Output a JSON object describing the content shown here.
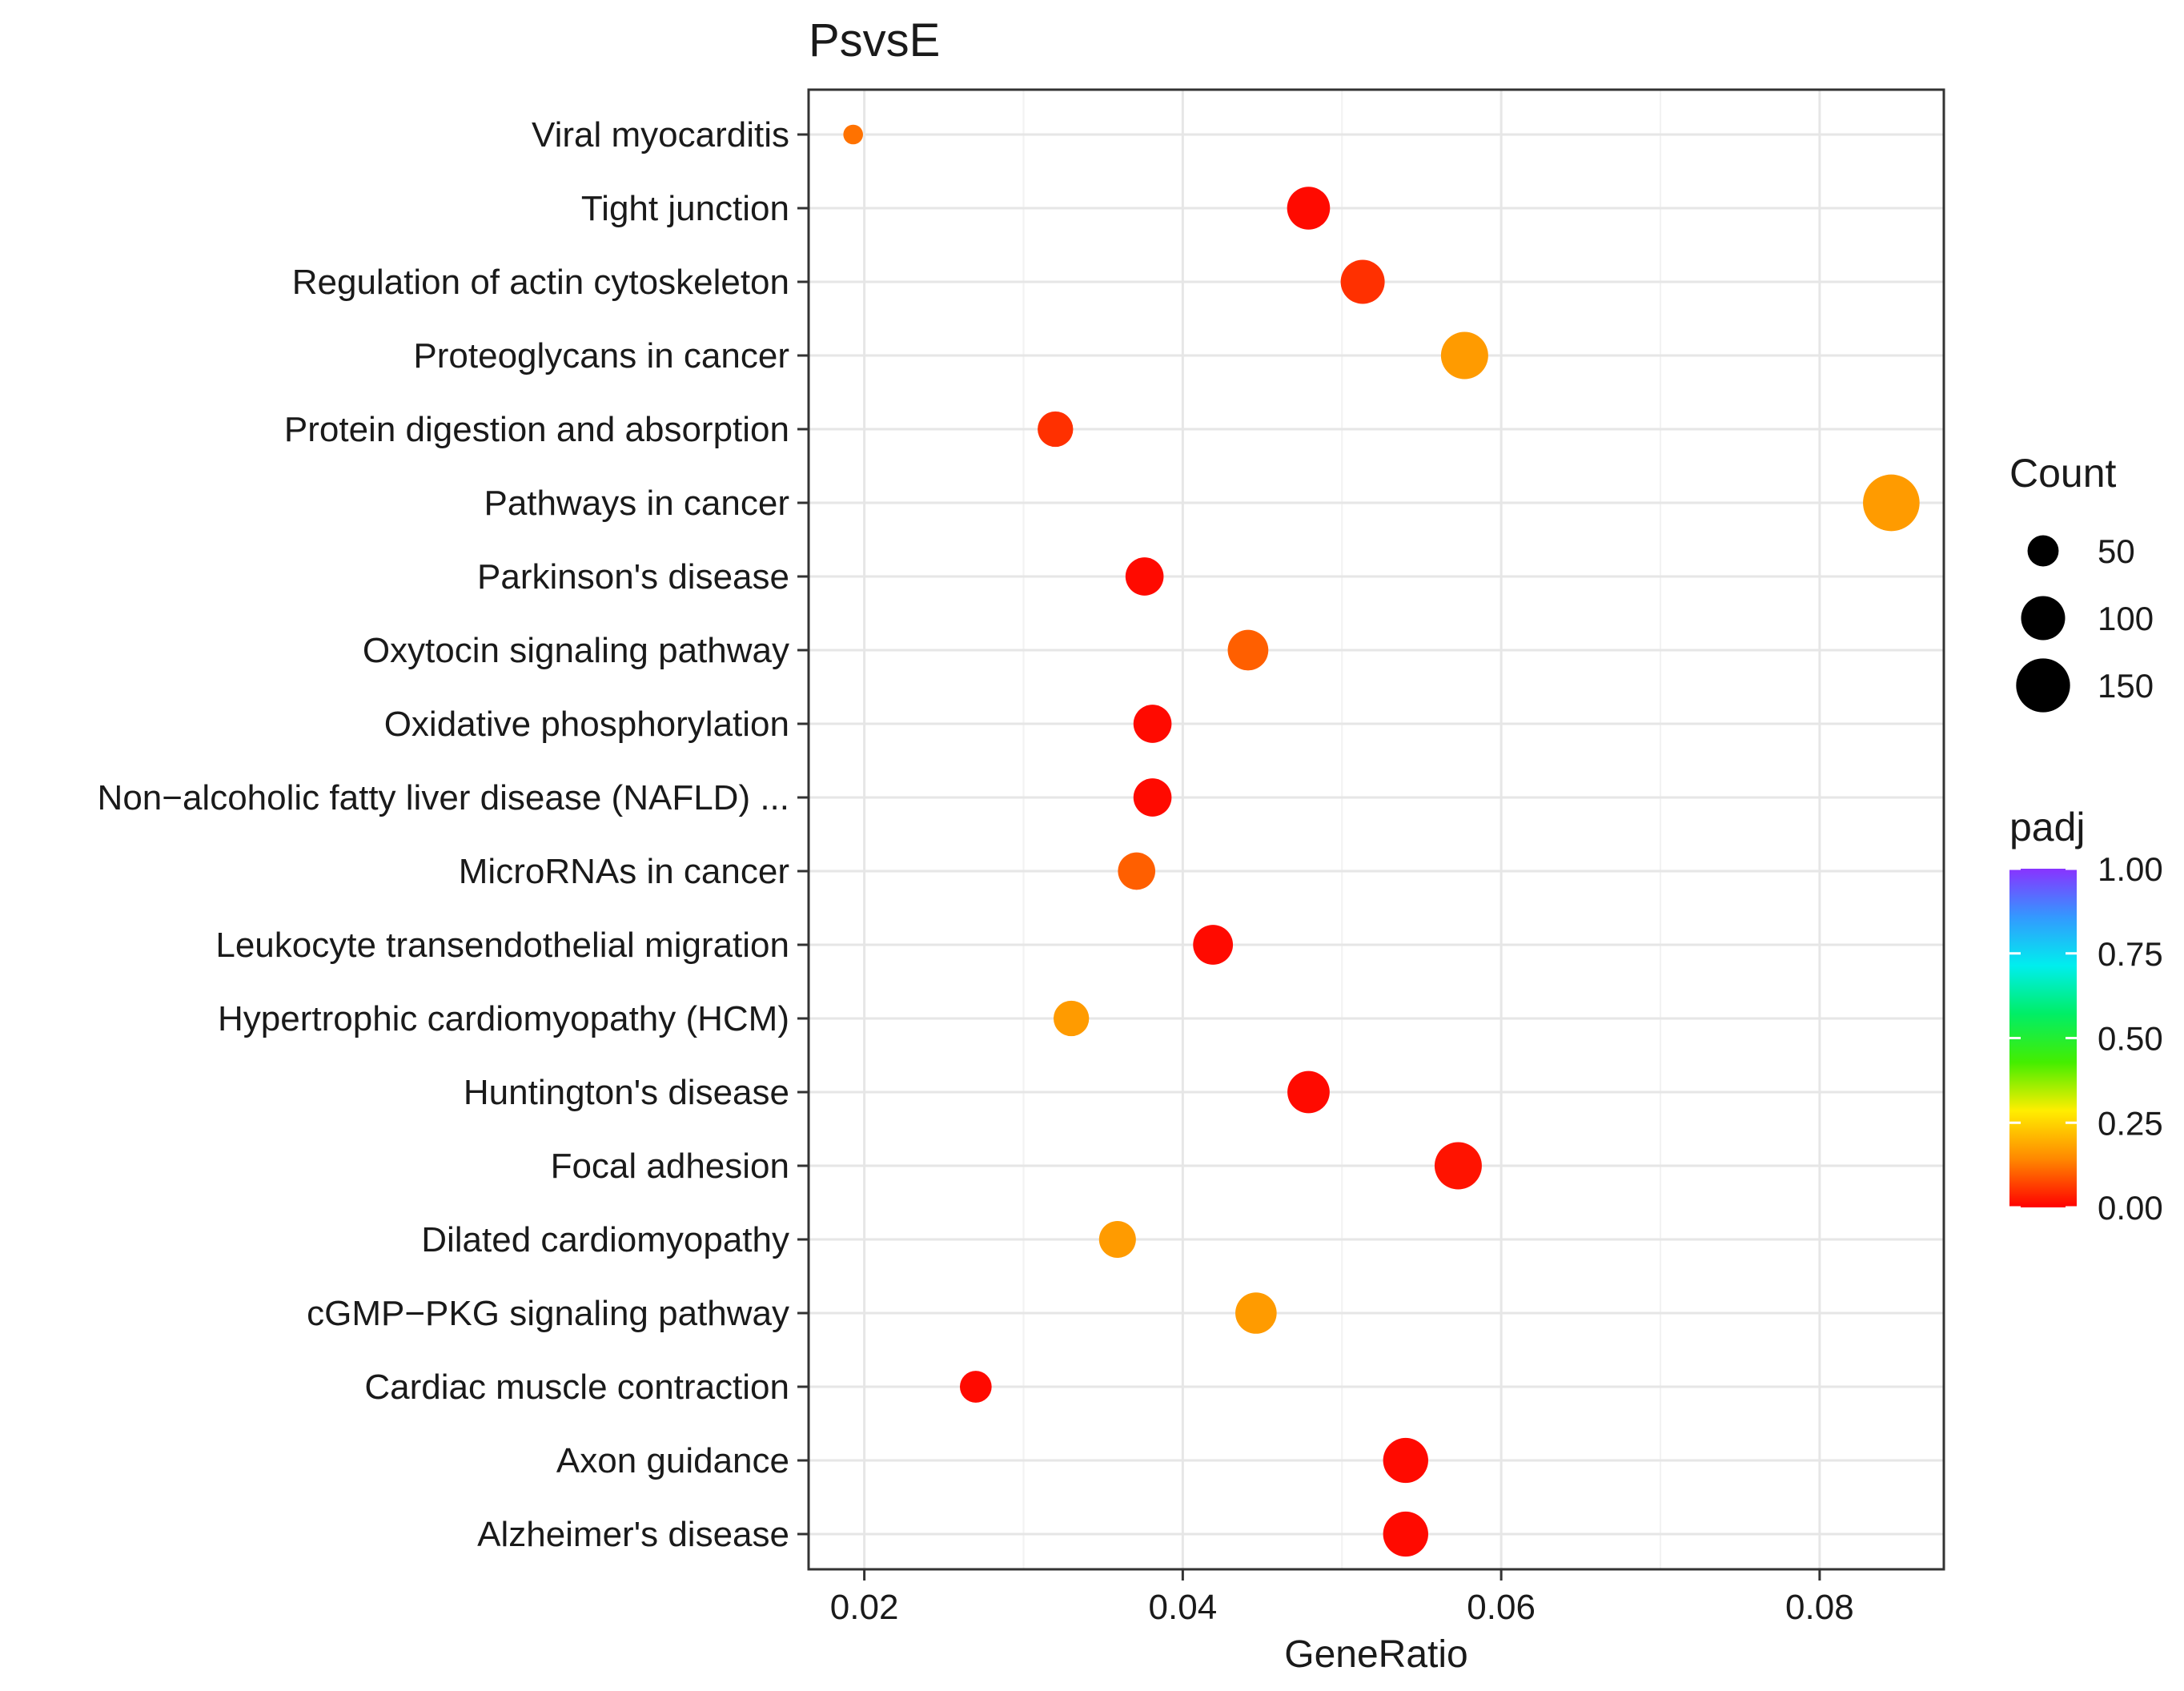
{
  "chart_data": {
    "type": "scatter",
    "title": "PsvsE",
    "xlabel": "GeneRatio",
    "ylabel": "",
    "xlim": [
      0.0165,
      0.0878
    ],
    "xticks": [
      0.02,
      0.04,
      0.06,
      0.08
    ],
    "xtick_labels": [
      "0.02",
      "0.04",
      "0.06",
      "0.08"
    ],
    "grid": true,
    "legend_position": "right",
    "points": [
      {
        "term": "Viral myocarditis",
        "gene_ratio": 0.0193,
        "count": 20,
        "padj": 0.12
      },
      {
        "term": "Tight junction",
        "gene_ratio": 0.0479,
        "count": 95,
        "padj": 0.01
      },
      {
        "term": "Regulation of actin cytoskeleton",
        "gene_ratio": 0.0513,
        "count": 100,
        "padj": 0.05
      },
      {
        "term": "Proteoglycans in cancer",
        "gene_ratio": 0.0577,
        "count": 115,
        "padj": 0.17
      },
      {
        "term": "Protein digestion and absorption",
        "gene_ratio": 0.032,
        "count": 65,
        "padj": 0.05
      },
      {
        "term": "Pathways in cancer",
        "gene_ratio": 0.0845,
        "count": 165,
        "padj": 0.17
      },
      {
        "term": "Parkinson's disease",
        "gene_ratio": 0.0376,
        "count": 75,
        "padj": 0.01
      },
      {
        "term": "Oxytocin signaling pathway",
        "gene_ratio": 0.0441,
        "count": 85,
        "padj": 0.1
      },
      {
        "term": "Oxidative phosphorylation",
        "gene_ratio": 0.0381,
        "count": 75,
        "padj": 0.01
      },
      {
        "term": "Non−alcoholic fatty liver disease (NAFLD) ...",
        "gene_ratio": 0.0381,
        "count": 75,
        "padj": 0.01
      },
      {
        "term": "MicroRNAs in cancer",
        "gene_ratio": 0.0371,
        "count": 72,
        "padj": 0.1
      },
      {
        "term": "Leukocyte transendothelial migration",
        "gene_ratio": 0.0419,
        "count": 82,
        "padj": 0.01
      },
      {
        "term": "Hypertrophic cardiomyopathy (HCM)",
        "gene_ratio": 0.033,
        "count": 65,
        "padj": 0.17
      },
      {
        "term": "Huntington's disease",
        "gene_ratio": 0.0479,
        "count": 92,
        "padj": 0.01
      },
      {
        "term": "Focal adhesion",
        "gene_ratio": 0.0573,
        "count": 115,
        "padj": 0.02
      },
      {
        "term": "Dilated cardiomyopathy",
        "gene_ratio": 0.0359,
        "count": 70,
        "padj": 0.17
      },
      {
        "term": "cGMP−PKG signaling pathway",
        "gene_ratio": 0.0446,
        "count": 88,
        "padj": 0.17
      },
      {
        "term": "Cardiac muscle contraction",
        "gene_ratio": 0.027,
        "count": 52,
        "padj": 0.01
      },
      {
        "term": "Axon guidance",
        "gene_ratio": 0.054,
        "count": 105,
        "padj": 0.01
      },
      {
        "term": "Alzheimer's disease",
        "gene_ratio": 0.054,
        "count": 105,
        "padj": 0.01
      }
    ],
    "size_legend": {
      "title": "Count",
      "values": [
        50,
        100,
        150
      ],
      "labels": [
        "50",
        "100",
        "150"
      ]
    },
    "color_legend": {
      "title": "padj",
      "range": [
        0.0,
        1.0
      ],
      "ticks": [
        1.0,
        0.75,
        0.5,
        0.25,
        0.0
      ],
      "labels": [
        "1.00",
        "0.75",
        "0.50",
        "0.25",
        "0.00"
      ],
      "colors": [
        "#ff0000",
        "#ff8800",
        "#ffee00",
        "#44ee00",
        "#00ee66",
        "#00eeee",
        "#3399ff",
        "#8833ff"
      ]
    }
  }
}
